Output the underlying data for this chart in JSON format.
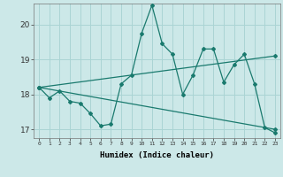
{
  "xlabel": "Humidex (Indice chaleur)",
  "ylabel": "",
  "xlim": [
    -0.5,
    23.5
  ],
  "ylim": [
    16.75,
    20.6
  ],
  "yticks": [
    17,
    18,
    19,
    20
  ],
  "xticks": [
    0,
    1,
    2,
    3,
    4,
    5,
    6,
    7,
    8,
    9,
    10,
    11,
    12,
    13,
    14,
    15,
    16,
    17,
    18,
    19,
    20,
    21,
    22,
    23
  ],
  "bg_color": "#cce8e8",
  "line_color": "#1a7a6e",
  "grid_color": "#aad4d4",
  "main_line": {
    "x": [
      0,
      1,
      2,
      3,
      4,
      5,
      6,
      7,
      8,
      9,
      10,
      11,
      12,
      13,
      14,
      15,
      16,
      17,
      18,
      19,
      20,
      21,
      22,
      23
    ],
    "y": [
      18.2,
      17.9,
      18.1,
      17.8,
      17.75,
      17.45,
      17.1,
      17.15,
      18.3,
      18.55,
      19.75,
      20.55,
      19.45,
      19.15,
      18.0,
      18.55,
      19.3,
      19.3,
      18.35,
      18.85,
      19.15,
      18.3,
      17.05,
      16.9
    ]
  },
  "upper_line": {
    "x": [
      0,
      23
    ],
    "y": [
      18.2,
      19.1
    ]
  },
  "lower_line": {
    "x": [
      0,
      23
    ],
    "y": [
      18.2,
      17.0
    ]
  }
}
